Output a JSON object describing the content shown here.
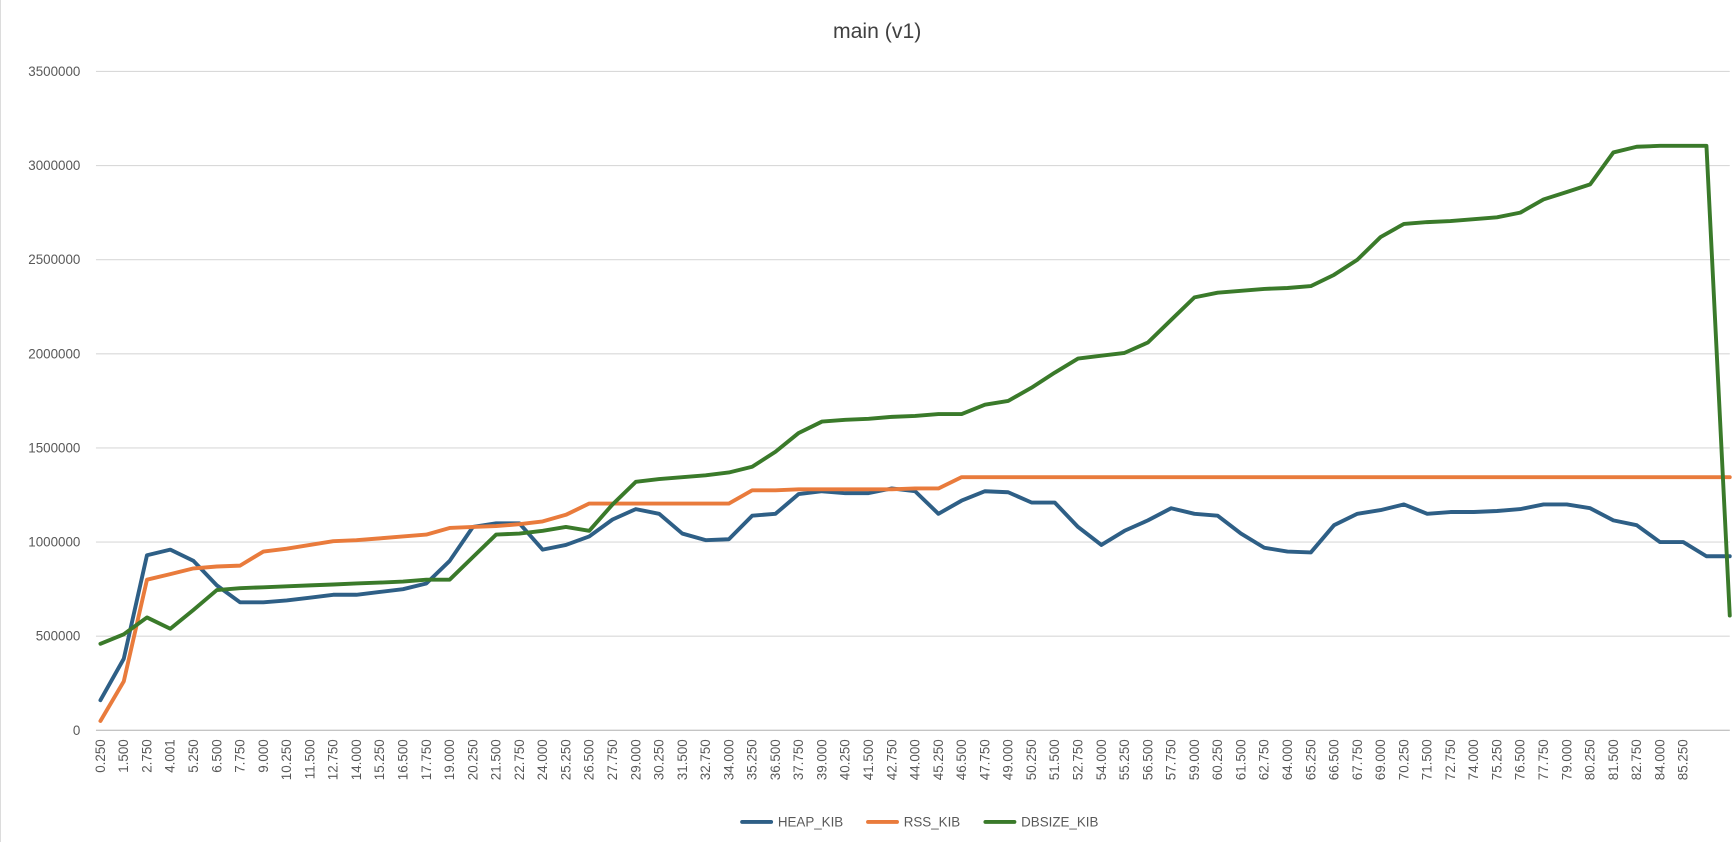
{
  "chart_data": {
    "type": "line",
    "title": "main (v1)",
    "categories": [
      "0.250",
      "1.500",
      "2.750",
      "4.001",
      "5.250",
      "6.500",
      "7.750",
      "9.000",
      "10.250",
      "11.500",
      "12.750",
      "14.000",
      "15.250",
      "16.500",
      "17.750",
      "19.000",
      "20.250",
      "21.500",
      "22.750",
      "24.000",
      "25.250",
      "26.500",
      "27.750",
      "29.000",
      "30.250",
      "31.500",
      "32.750",
      "34.000",
      "35.250",
      "36.500",
      "37.750",
      "39.000",
      "40.250",
      "41.500",
      "42.750",
      "44.000",
      "45.250",
      "46.500",
      "47.750",
      "49.000",
      "50.250",
      "51.500",
      "52.750",
      "54.000",
      "55.250",
      "56.500",
      "57.750",
      "59.000",
      "60.250",
      "61.500",
      "62.750",
      "64.000",
      "65.250",
      "66.500",
      "67.750",
      "69.000",
      "70.250",
      "71.500",
      "72.750",
      "74.000",
      "75.250",
      "76.500",
      "77.750",
      "79.000",
      "80.250",
      "81.500",
      "82.750",
      "84.000",
      "85.250",
      null,
      null
    ],
    "series": [
      {
        "name": "HEAP_KIB",
        "color": "#2e5f86",
        "values": [
          160000,
          380000,
          930000,
          960000,
          900000,
          770000,
          680000,
          680000,
          690000,
          705000,
          720000,
          720000,
          735000,
          750000,
          780000,
          900000,
          1080000,
          1100000,
          1100000,
          960000,
          985000,
          1030000,
          1120000,
          1175000,
          1150000,
          1045000,
          1010000,
          1015000,
          1140000,
          1150000,
          1255000,
          1270000,
          1260000,
          1260000,
          1285000,
          1270000,
          1150000,
          1220000,
          1270000,
          1265000,
          1210000,
          1210000,
          1080000,
          985000,
          1060000,
          1115000,
          1180000,
          1150000,
          1140000,
          1045000,
          970000,
          950000,
          945000,
          1090000,
          1150000,
          1170000,
          1200000,
          1150000,
          1160000,
          1160000,
          1165000,
          1175000,
          1200000,
          1200000,
          1180000,
          1115000,
          1090000,
          1000000,
          1000000,
          925000,
          925000
        ]
      },
      {
        "name": "RSS_KIB",
        "color": "#e97b3c",
        "values": [
          50000,
          260000,
          800000,
          830000,
          860000,
          870000,
          875000,
          950000,
          965000,
          985000,
          1005000,
          1010000,
          1020000,
          1030000,
          1040000,
          1075000,
          1080000,
          1085000,
          1095000,
          1110000,
          1145000,
          1205000,
          1205000,
          1205000,
          1205000,
          1205000,
          1205000,
          1205000,
          1275000,
          1275000,
          1280000,
          1280000,
          1280000,
          1280000,
          1280000,
          1285000,
          1285000,
          1345000,
          1345000,
          1345000,
          1345000,
          1345000,
          1345000,
          1345000,
          1345000,
          1345000,
          1345000,
          1345000,
          1345000,
          1345000,
          1345000,
          1345000,
          1345000,
          1345000,
          1345000,
          1345000,
          1345000,
          1345000,
          1345000,
          1345000,
          1345000,
          1345000,
          1345000,
          1345000,
          1345000,
          1345000,
          1345000,
          1345000,
          1345000,
          1345000,
          1345000
        ]
      },
      {
        "name": "DBSIZE_KIB",
        "color": "#3a7a2a",
        "values": [
          460000,
          510000,
          600000,
          540000,
          640000,
          745000,
          755000,
          760000,
          765000,
          770000,
          775000,
          780000,
          785000,
          790000,
          800000,
          800000,
          920000,
          1040000,
          1045000,
          1060000,
          1080000,
          1060000,
          1200000,
          1320000,
          1335000,
          1345000,
          1355000,
          1370000,
          1400000,
          1480000,
          1580000,
          1640000,
          1650000,
          1655000,
          1665000,
          1670000,
          1680000,
          1680000,
          1730000,
          1750000,
          1820000,
          1900000,
          1975000,
          1990000,
          2005000,
          2060000,
          2180000,
          2300000,
          2325000,
          2335000,
          2345000,
          2350000,
          2360000,
          2420000,
          2500000,
          2620000,
          2690000,
          2700000,
          2705000,
          2715000,
          2725000,
          2750000,
          2820000,
          2860000,
          2900000,
          3070000,
          3100000,
          3105000,
          3105000,
          3105000,
          610000
        ]
      }
    ],
    "ylim": [
      0,
      3500000
    ],
    "yticks": [
      0,
      500000,
      1000000,
      1500000,
      2000000,
      2500000,
      3000000,
      3500000
    ],
    "grid": true,
    "legend": "bottom"
  }
}
